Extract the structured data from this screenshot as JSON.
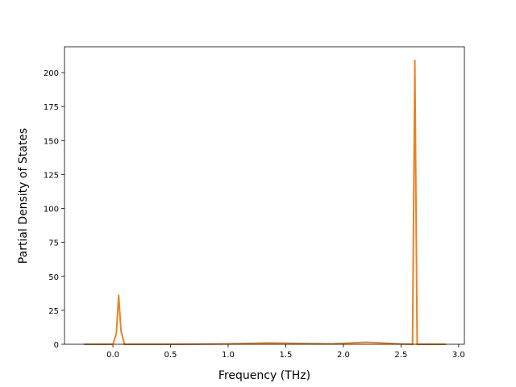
{
  "chart_data": {
    "type": "line",
    "xlabel": "Frequency (THz)",
    "ylabel": "Partial Density of States",
    "x": [
      -0.25,
      0.0,
      0.03,
      0.05,
      0.07,
      0.1,
      0.5,
      1.0,
      1.35,
      1.7,
      1.9,
      2.2,
      2.5,
      2.6,
      2.62,
      2.64,
      2.89
    ],
    "series": [
      {
        "color": "#ee8125",
        "values": [
          0,
          0,
          8,
          36,
          10,
          0,
          0,
          0.3,
          1,
          0.5,
          0.3,
          1.5,
          0.2,
          0,
          209,
          0,
          0
        ]
      }
    ],
    "xlim": [
      -0.42,
      3.05
    ],
    "ylim": [
      0,
      219
    ],
    "xticks": [
      {
        "value": 0,
        "label": "0.0"
      },
      {
        "value": 0.5,
        "label": "0.5"
      },
      {
        "value": 1,
        "label": "1.0"
      },
      {
        "value": 1.5,
        "label": "1.5"
      },
      {
        "value": 2,
        "label": "2.0"
      },
      {
        "value": 2.5,
        "label": "2.5"
      },
      {
        "value": 3,
        "label": "3.0"
      }
    ],
    "yticks": [
      0,
      25,
      50,
      75,
      100,
      125,
      150,
      175,
      200
    ]
  }
}
